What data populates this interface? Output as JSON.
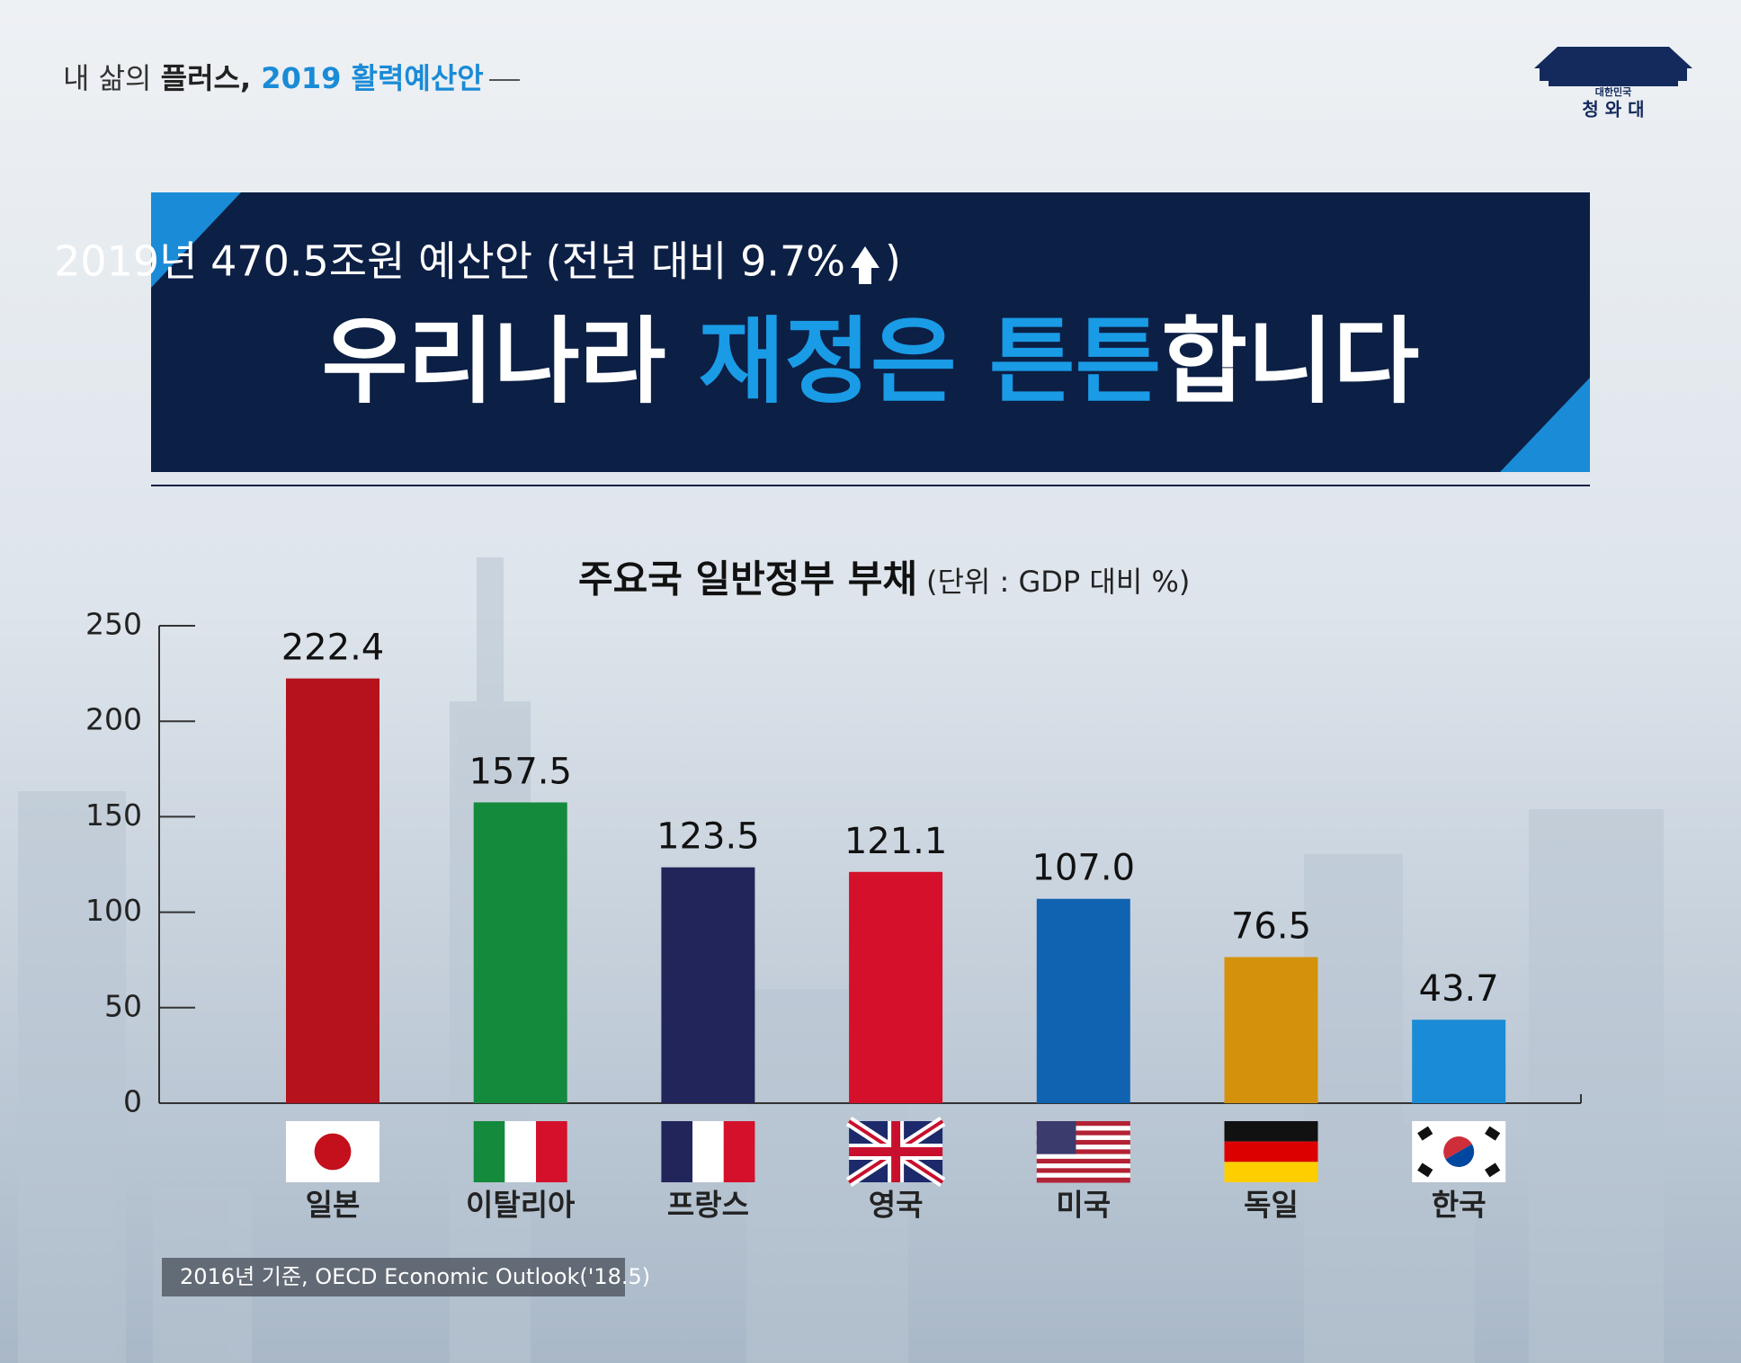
{
  "header": {
    "parts": [
      "내 삶의 ",
      "플러스,",
      " 2019 활력예산안"
    ],
    "logo_small": "대한민국",
    "logo_big": "청 와 대"
  },
  "banner": {
    "subtitle": "2019년 470.5조원 예산안 (전년 대비 9.7%",
    "subtitle_end": ")",
    "title_parts": [
      "우리나라 ",
      "재정은 튼튼",
      "합니다"
    ]
  },
  "chart_data": {
    "type": "bar",
    "title": "주요국 일반정부 부채",
    "unit": "(단위 : GDP 대비 %)",
    "categories": [
      "일본",
      "이탈리아",
      "프랑스",
      "영국",
      "미국",
      "독일",
      "한국"
    ],
    "values": [
      222.4,
      157.5,
      123.5,
      121.1,
      107.0,
      76.5,
      43.7
    ],
    "value_labels": [
      "222.4",
      "157.5",
      "123.5",
      "121.1",
      "107.0",
      "76.5",
      "43.7"
    ],
    "colors": [
      "#b5121b",
      "#148a3c",
      "#22255a",
      "#d4102a",
      "#0f63b0",
      "#d4920c",
      "#1a8bd6"
    ],
    "ylim": [
      0,
      250
    ],
    "yticks": [
      0,
      50,
      100,
      150,
      200,
      250
    ],
    "source": "2016년 기준, OECD Economic Outlook('18.5)"
  }
}
